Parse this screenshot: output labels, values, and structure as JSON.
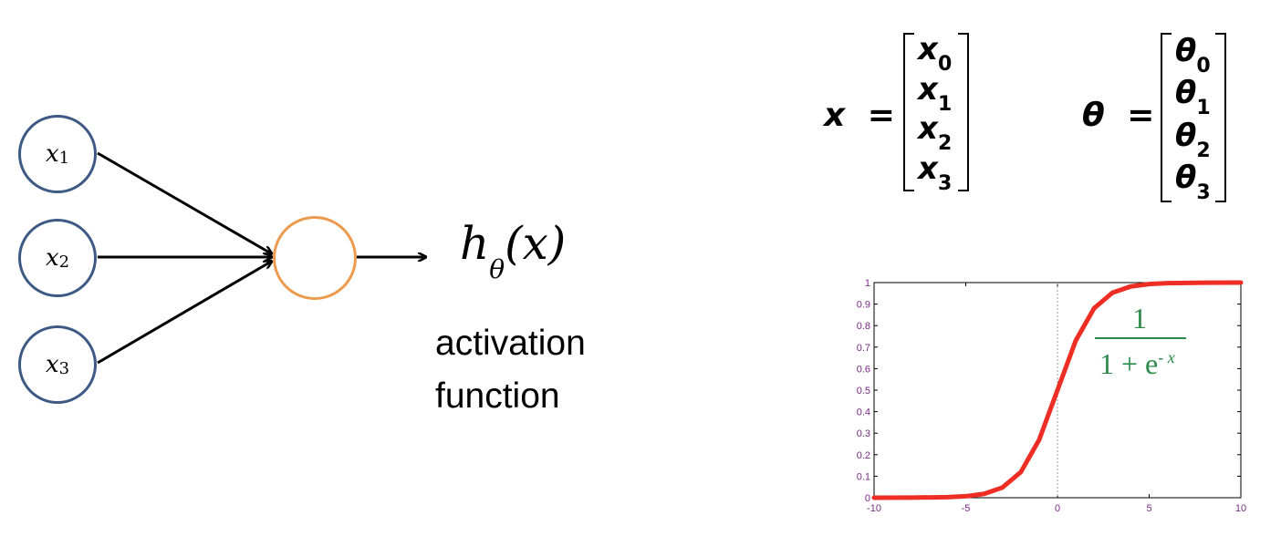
{
  "inputs": [
    {
      "var": "x",
      "sub": "1"
    },
    {
      "var": "x",
      "sub": "2"
    },
    {
      "var": "x",
      "sub": "3"
    }
  ],
  "output": {
    "h": "h",
    "sub": "θ",
    "arg": "(x)"
  },
  "caption": {
    "line1": "activation",
    "line2": "function"
  },
  "x_vector": {
    "lhs": "x",
    "eq": "=",
    "entries": [
      {
        "var": "x",
        "sub": "0"
      },
      {
        "var": "x",
        "sub": "1"
      },
      {
        "var": "x",
        "sub": "2"
      },
      {
        "var": "x",
        "sub": "3"
      }
    ]
  },
  "theta_vector": {
    "lhs": "θ",
    "eq": "=",
    "entries": [
      {
        "var": "θ",
        "sub": "0"
      },
      {
        "var": "θ",
        "sub": "1"
      },
      {
        "var": "θ",
        "sub": "2"
      },
      {
        "var": "θ",
        "sub": "3"
      }
    ]
  },
  "colors": {
    "input_node": "#3e5a84",
    "neuron_node": "#ec9a4d",
    "curve": "#ee2e24",
    "tick_labels": "#7a2a86",
    "formula": "#2b8a4a"
  },
  "chart_data": {
    "type": "line",
    "series": [
      {
        "function": "sigmoid",
        "x": [
          -10,
          -8,
          -6,
          -5,
          -4,
          -3,
          -2,
          -1,
          0,
          1,
          2,
          3,
          4,
          5,
          6,
          8,
          10
        ],
        "y": [
          4.54e-05,
          0.000335,
          0.00247,
          0.00669,
          0.018,
          0.0474,
          0.119,
          0.269,
          0.5,
          0.731,
          0.881,
          0.953,
          0.982,
          0.993,
          0.9975,
          0.99966,
          0.99995
        ]
      }
    ],
    "xlim": [
      -10,
      10
    ],
    "ylim": [
      0,
      1
    ],
    "x_ticks": [
      "-10",
      "-5",
      "0",
      "5",
      "10"
    ],
    "y_ticks": [
      "0",
      "0.1",
      "0.2",
      "0.3",
      "0.4",
      "0.5",
      "0.6",
      "0.7",
      "0.8",
      "0.9",
      "1"
    ],
    "vertical_reference_line_at": 0,
    "annotation": {
      "numerator": "1",
      "denominator_base": "1 + e",
      "exponent": "- x"
    }
  }
}
